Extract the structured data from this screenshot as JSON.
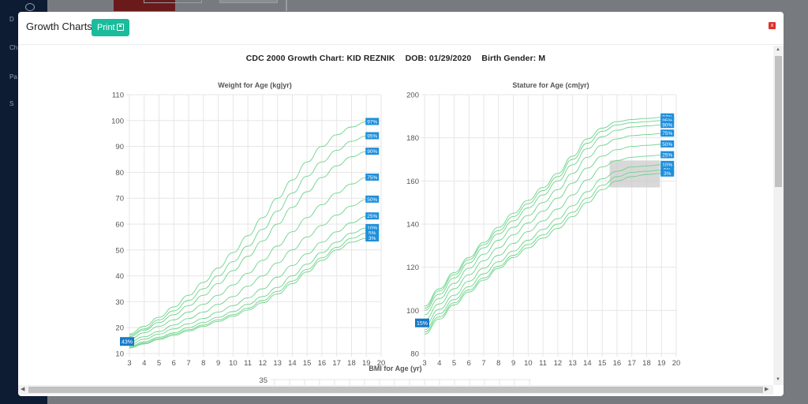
{
  "background": {
    "nav": [
      "D",
      "Ch",
      "Pa",
      "S"
    ]
  },
  "modal": {
    "title": "Growth Charts",
    "print_label": "Print",
    "close_label": "x",
    "heading": {
      "chart_name": "CDC 2000 Growth Chart: KID REZNIK",
      "dob": "DOB: 01/29/2020",
      "gender": "Birth Gender: M"
    }
  },
  "chart_data": [
    {
      "type": "line",
      "title": "Weight for Age (kg|yr)",
      "xlim": [
        3,
        20
      ],
      "ylim": [
        10,
        110
      ],
      "xticks": [
        3,
        4,
        5,
        6,
        7,
        8,
        9,
        10,
        11,
        12,
        13,
        14,
        15,
        16,
        17,
        18,
        19,
        20
      ],
      "yticks": [
        10,
        20,
        30,
        40,
        50,
        60,
        70,
        80,
        90,
        100,
        110
      ],
      "x": [
        3,
        4,
        5,
        6,
        7,
        8,
        9,
        10,
        11,
        12,
        13,
        14,
        15,
        16,
        17,
        18,
        19
      ],
      "grid": true,
      "series": [
        {
          "name": "97%",
          "values": [
            17.5,
            20.5,
            24,
            28,
            32.5,
            37.5,
            43,
            49,
            55.5,
            62.5,
            70,
            77,
            84,
            90,
            94.5,
            97.5,
            99.5
          ]
        },
        {
          "name": "95%",
          "values": [
            17,
            19.5,
            23,
            26.5,
            30.5,
            35,
            40,
            45.5,
            51.5,
            58,
            65,
            72,
            78.5,
            84,
            88.5,
            92,
            94
          ]
        },
        {
          "name": "90%",
          "values": [
            16.5,
            19,
            22,
            25,
            28.5,
            32.5,
            37,
            42,
            47.5,
            53.5,
            60,
            66.5,
            72.5,
            78,
            82.5,
            86,
            88
          ]
        },
        {
          "name": "75%",
          "values": [
            15.5,
            18,
            20.5,
            23,
            26,
            29,
            32.5,
            36.5,
            41,
            46,
            51.5,
            57,
            62.5,
            67.5,
            72,
            75.5,
            78
          ]
        },
        {
          "name": "50%",
          "values": [
            14.5,
            16.5,
            18.5,
            21,
            23.5,
            26,
            29,
            32,
            36,
            40,
            45,
            50,
            55,
            59.5,
            63.5,
            67,
            69.5
          ]
        },
        {
          "name": "25%",
          "values": [
            13.5,
            15.5,
            17.5,
            19.5,
            21.5,
            23.5,
            26,
            28.5,
            31.5,
            35,
            39.5,
            44,
            48.5,
            53,
            57,
            60.5,
            63
          ]
        },
        {
          "name": "10%",
          "values": [
            12.8,
            14.5,
            16.3,
            18,
            20,
            22,
            24,
            26.2,
            29,
            32,
            35.5,
            40,
            44.5,
            49,
            53,
            56.5,
            58.5
          ]
        },
        {
          "name": "5%",
          "values": [
            12.4,
            14,
            15.8,
            17.5,
            19.2,
            21,
            23,
            25,
            27.5,
            30.5,
            34,
            38,
            42.5,
            47,
            51,
            54.5,
            56.5
          ]
        },
        {
          "name": "3%",
          "values": [
            12.1,
            13.7,
            15.4,
            17,
            18.7,
            20.5,
            22.4,
            24.4,
            26.8,
            29.6,
            33,
            37,
            41.5,
            46,
            50,
            53,
            54.5
          ]
        }
      ],
      "patient_label": "43%",
      "patient_point": {
        "x": 3,
        "y": 14.5
      }
    },
    {
      "type": "line",
      "title": "Stature for Age (cm|yr)",
      "xlim": [
        3,
        20
      ],
      "ylim": [
        80,
        200
      ],
      "xticks": [
        3,
        4,
        5,
        6,
        7,
        8,
        9,
        10,
        11,
        12,
        13,
        14,
        15,
        16,
        17,
        18,
        19,
        20
      ],
      "yticks": [
        80,
        100,
        120,
        140,
        160,
        180,
        200
      ],
      "x": [
        3,
        4,
        5,
        6,
        7,
        8,
        9,
        10,
        11,
        12,
        13,
        14,
        15,
        16,
        17,
        18,
        19
      ],
      "grid": true,
      "series": [
        {
          "name": "97%",
          "values": [
            102,
            110,
            117.5,
            124.5,
            131.5,
            138.5,
            145,
            151,
            157,
            163.5,
            171.5,
            179.5,
            184.5,
            187.5,
            188.5,
            189,
            189.5
          ]
        },
        {
          "name": "95%",
          "values": [
            101,
            109,
            116.5,
            123.5,
            130.5,
            137,
            143.5,
            149.5,
            155.5,
            162,
            170,
            177.5,
            183,
            186,
            187,
            187.5,
            188
          ]
        },
        {
          "name": "90%",
          "values": [
            100,
            107.5,
            115,
            122,
            129,
            135.5,
            141.5,
            147.5,
            153.5,
            160,
            167.5,
            175,
            180.5,
            183.5,
            185,
            185.5,
            186
          ]
        },
        {
          "name": "75%",
          "values": [
            98,
            105.5,
            112.5,
            119.5,
            126,
            132.5,
            138.5,
            144,
            150,
            156,
            163.5,
            171,
            176.5,
            179.5,
            181,
            181.5,
            182
          ]
        },
        {
          "name": "50%",
          "values": [
            95.5,
            103,
            110,
            116.5,
            123,
            129,
            135,
            140.5,
            146,
            152,
            159,
            166,
            171.5,
            174.5,
            176,
            176.5,
            177
          ]
        },
        {
          "name": "25%",
          "values": [
            93,
            100.5,
            107,
            113.5,
            119.5,
            125.5,
            131,
            136.5,
            141.5,
            147,
            153.5,
            160.5,
            166.5,
            169.5,
            171,
            171.5,
            172
          ]
        },
        {
          "name": "10%",
          "values": [
            91,
            98.5,
            105,
            111,
            117,
            122.5,
            127.5,
            132.5,
            137.5,
            142.5,
            148.5,
            155,
            161,
            164.5,
            166.5,
            167,
            167.5
          ]
        },
        {
          "name": "5%",
          "values": [
            90,
            97,
            103.5,
            109.5,
            115,
            120.5,
            125.5,
            130.5,
            135,
            140,
            145.5,
            152,
            158,
            162,
            164,
            164.5,
            165
          ]
        },
        {
          "name": "3%",
          "values": [
            89,
            96,
            102.5,
            108.5,
            114,
            119.5,
            124.5,
            129,
            133.5,
            138,
            143.5,
            150,
            156,
            160,
            162,
            163,
            163.5
          ]
        }
      ],
      "patient_label": "15%",
      "patient_point": {
        "x": 3,
        "y": 94
      }
    },
    {
      "type": "line",
      "title": "BMI for Age (yr)",
      "yticks": [
        35
      ]
    }
  ]
}
